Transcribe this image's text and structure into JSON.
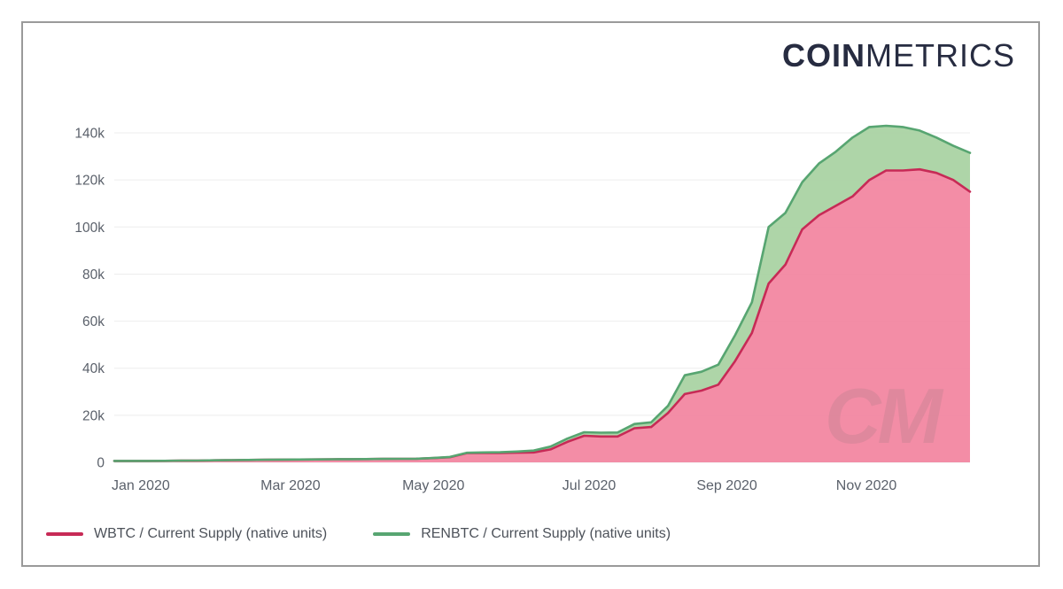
{
  "page": {
    "background": "#ffffff",
    "card_border_color": "#9a9a9a"
  },
  "logo": {
    "bold": "COIN",
    "light": "METRICS",
    "color": "#272c41"
  },
  "watermark": "CM",
  "legend": [
    {
      "label": "WBTC / Current Supply (native units)",
      "color": "#c72a56"
    },
    {
      "label": "RENBTC / Current Supply (native units)",
      "color": "#57a571"
    }
  ],
  "chart_data": {
    "type": "area",
    "stacked": true,
    "title": "",
    "xlabel": "",
    "ylabel": "",
    "grid": "horizontal-only",
    "grid_color": "#ededed",
    "axis_text_color": "#5b616b",
    "legend_position": "bottom-left",
    "x_range": [
      "Jan 2020",
      "Dec 2020"
    ],
    "x_cadence": "weekly (values estimated from plot)",
    "x_ticks": [
      {
        "label": "Jan 2020",
        "f": 0.004
      },
      {
        "label": "Mar 2020",
        "f": 0.179
      },
      {
        "label": "May 2020",
        "f": 0.346
      },
      {
        "label": "Jul 2020",
        "f": 0.528
      },
      {
        "label": "Sep 2020",
        "f": 0.689
      },
      {
        "label": "Nov 2020",
        "f": 0.852
      }
    ],
    "y_ticks": [
      {
        "label": "0",
        "value": 0
      },
      {
        "label": "20k",
        "value": 20000
      },
      {
        "label": "40k",
        "value": 40000
      },
      {
        "label": "60k",
        "value": 60000
      },
      {
        "label": "80k",
        "value": 80000
      },
      {
        "label": "100k",
        "value": 100000
      },
      {
        "label": "120k",
        "value": 120000
      },
      {
        "label": "140k",
        "value": 140000
      }
    ],
    "ylim": [
      0,
      152000
    ],
    "series": [
      {
        "name": "WBTC / Current Supply (native units)",
        "color": "#c72a56",
        "fill": "#f2839e",
        "values": [
          590,
          600,
          620,
          650,
          700,
          750,
          850,
          950,
          1000,
          1100,
          1150,
          1200,
          1250,
          1300,
          1350,
          1400,
          1450,
          1500,
          1550,
          1800,
          2200,
          3900,
          4000,
          4000,
          4100,
          4200,
          5500,
          8700,
          11300,
          11000,
          11000,
          14500,
          15000,
          21000,
          29000,
          30500,
          33000,
          43000,
          55000,
          76000,
          84000,
          99000,
          105000,
          109000,
          113000,
          120000,
          124000,
          124000,
          124500,
          123000,
          120000,
          115000
        ]
      },
      {
        "name": "RENBTC / Current Supply (native units)",
        "color": "#57a571",
        "fill": "#aad3a3",
        "values": [
          0,
          0,
          0,
          0,
          0,
          0,
          0,
          0,
          0,
          0,
          0,
          0,
          0,
          0,
          0,
          0,
          0,
          0,
          10,
          50,
          100,
          150,
          200,
          300,
          500,
          800,
          1200,
          1400,
          1500,
          1600,
          1700,
          1800,
          2000,
          3000,
          8000,
          8000,
          8500,
          11000,
          13000,
          24000,
          22000,
          20000,
          22000,
          23000,
          25000,
          22500,
          19000,
          18500,
          16500,
          15000,
          14500,
          16500
        ]
      }
    ]
  }
}
